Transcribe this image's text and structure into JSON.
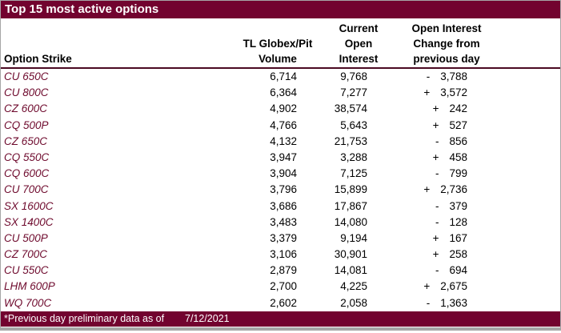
{
  "title": "Top 15 most active options",
  "columns": {
    "option_strike": "Option Strike",
    "volume_lines": [
      "TL Globex/Pit",
      "Volume"
    ],
    "current_oi_lines": [
      "Current",
      "Open",
      "Interest"
    ],
    "oi_change_lines": [
      "Open Interest",
      "Change from",
      "previous day"
    ]
  },
  "rows": [
    {
      "strike": "CU 650C",
      "volume": "6,714",
      "open_interest": "9,768",
      "change_sign": "-",
      "change_value": "3,788"
    },
    {
      "strike": "CU 800C",
      "volume": "6,364",
      "open_interest": "7,277",
      "change_sign": "+",
      "change_value": "3,572"
    },
    {
      "strike": "CZ 600C",
      "volume": "4,902",
      "open_interest": "38,574",
      "change_sign": "+",
      "change_value": "242"
    },
    {
      "strike": "CQ 500P",
      "volume": "4,766",
      "open_interest": "5,643",
      "change_sign": "+",
      "change_value": "527"
    },
    {
      "strike": "CZ 650C",
      "volume": "4,132",
      "open_interest": "21,753",
      "change_sign": "-",
      "change_value": "856"
    },
    {
      "strike": "CQ 550C",
      "volume": "3,947",
      "open_interest": "3,288",
      "change_sign": "+",
      "change_value": "458"
    },
    {
      "strike": "CQ 600C",
      "volume": "3,904",
      "open_interest": "7,125",
      "change_sign": "-",
      "change_value": "799"
    },
    {
      "strike": "CU 700C",
      "volume": "3,796",
      "open_interest": "15,899",
      "change_sign": "+",
      "change_value": "2,736"
    },
    {
      "strike": "SX 1600C",
      "volume": "3,686",
      "open_interest": "17,867",
      "change_sign": "-",
      "change_value": "379"
    },
    {
      "strike": "SX 1400C",
      "volume": "3,483",
      "open_interest": "14,080",
      "change_sign": "-",
      "change_value": "128"
    },
    {
      "strike": "CU 500P",
      "volume": "3,379",
      "open_interest": "9,194",
      "change_sign": "+",
      "change_value": "167"
    },
    {
      "strike": "CZ 700C",
      "volume": "3,106",
      "open_interest": "30,901",
      "change_sign": "+",
      "change_value": "258"
    },
    {
      "strike": "CU 550C",
      "volume": "2,879",
      "open_interest": "14,081",
      "change_sign": "-",
      "change_value": "694"
    },
    {
      "strike": "LHM 600P",
      "volume": "2,700",
      "open_interest": "4,225",
      "change_sign": "+",
      "change_value": "2,675"
    },
    {
      "strike": "WQ 700C",
      "volume": "2,602",
      "open_interest": "2,058",
      "change_sign": "-",
      "change_value": "1,363"
    }
  ],
  "footer": {
    "note": "*Previous day preliminary data as of",
    "date": "7/12/2021"
  },
  "colors": {
    "bar_maroon": "#72032f",
    "strike_text_maroon": "#6e0a2d",
    "header_rule": "#4a0a22",
    "outer_border_gray": "#a6a6a6",
    "text_black": "#000000",
    "bar_text_white": "#ffffff"
  }
}
